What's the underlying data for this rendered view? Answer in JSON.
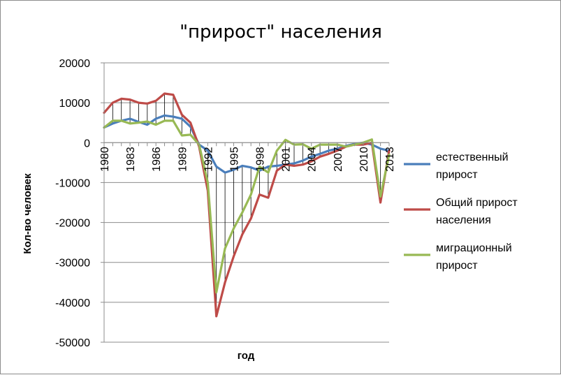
{
  "chart_data": {
    "type": "line",
    "title": "\"прирост\" населения",
    "xlabel": "год",
    "ylabel": "Кол-во человек",
    "ylim": [
      -50000,
      20000
    ],
    "y_ticks": [
      20000,
      10000,
      0,
      -10000,
      -20000,
      -30000,
      -40000,
      -50000
    ],
    "x": [
      1980,
      1981,
      1982,
      1983,
      1984,
      1985,
      1986,
      1987,
      1988,
      1989,
      1990,
      1991,
      1992,
      1993,
      1994,
      1995,
      1996,
      1997,
      1998,
      1999,
      2000,
      2001,
      2002,
      2003,
      2004,
      2005,
      2006,
      2007,
      2008,
      2009,
      2010,
      2011,
      2012,
      2013
    ],
    "x_tick_labels": [
      "1980",
      "1983",
      "1986",
      "1989",
      "1992",
      "1995",
      "1998",
      "2001",
      "2004",
      "2007",
      "2010",
      "2013"
    ],
    "grid": true,
    "legend_position": "right",
    "series": [
      {
        "name": "естественный прирост",
        "color": "#4a7ebb",
        "values": [
          3800,
          4800,
          5500,
          6000,
          5200,
          4500,
          6000,
          6800,
          6500,
          6000,
          4000,
          -500,
          -2000,
          -6000,
          -7500,
          -6800,
          -5800,
          -6200,
          -7000,
          -6000,
          -5800,
          -5500,
          -5200,
          -4500,
          -3500,
          -2800,
          -2000,
          -1500,
          -800,
          -300,
          0,
          -500,
          -1500,
          -2000
        ]
      },
      {
        "name": "Общий прирост населения",
        "color": "#be4b48",
        "values": [
          7500,
          10000,
          11000,
          10800,
          10000,
          9800,
          10500,
          12300,
          12000,
          7000,
          5000,
          -1000,
          -12000,
          -43500,
          -35000,
          -28500,
          -23000,
          -19000,
          -13000,
          -13800,
          -7000,
          -5500,
          -5800,
          -5500,
          -4700,
          -3500,
          -2800,
          -2000,
          -1000,
          -500,
          -500,
          0,
          -15000,
          -2000
        ]
      },
      {
        "name": "миграционный прирост",
        "color": "#98b954",
        "values": [
          3800,
          5500,
          5500,
          4800,
          5000,
          5300,
          4500,
          5500,
          5500,
          1800,
          2000,
          -500,
          -10000,
          -37500,
          -26500,
          -21500,
          -17500,
          -13000,
          -6000,
          -7500,
          -2000,
          700,
          -500,
          -400,
          -1500,
          -500,
          -500,
          -500,
          -1000,
          -500,
          0,
          800,
          -13500,
          -3000
        ]
      }
    ]
  }
}
